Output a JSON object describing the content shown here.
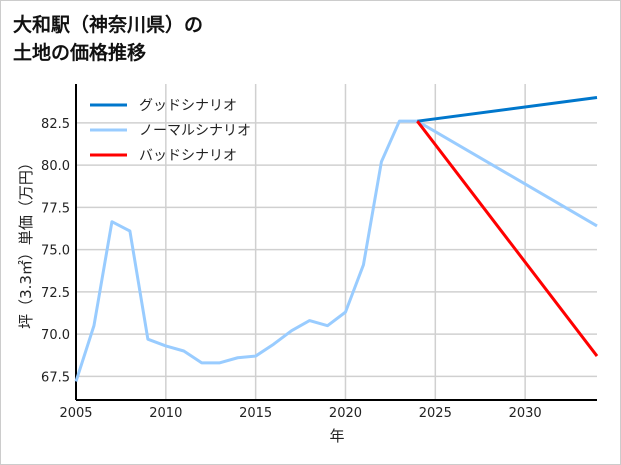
{
  "chart_data": {
    "type": "line",
    "title_lines": [
      "大和駅（神奈川県）の",
      "土地の価格推移"
    ],
    "xlabel": "年",
    "ylabel": "坪（3.3㎡）単価（万円）",
    "xlim": [
      2005,
      2034
    ],
    "ylim": [
      66.1,
      84.8
    ],
    "xticks": [
      2005,
      2010,
      2015,
      2020,
      2025,
      2030
    ],
    "yticks": [
      67.5,
      70.0,
      72.5,
      75.0,
      77.5,
      80.0,
      82.5
    ],
    "grid": true,
    "legend_position": "top-left",
    "series": [
      {
        "name": "グッドシナリオ",
        "color": "#0077cc",
        "x": [
          2024,
          2034
        ],
        "y": [
          82.6,
          84.0
        ]
      },
      {
        "name": "ノーマルシナリオ",
        "color": "#99ccff",
        "x": [
          2005,
          2006,
          2007,
          2008,
          2009,
          2010,
          2011,
          2012,
          2013,
          2014,
          2015,
          2016,
          2017,
          2018,
          2019,
          2020,
          2021,
          2022,
          2023,
          2024,
          2034
        ],
        "y": [
          67.2,
          70.5,
          76.65,
          76.1,
          69.7,
          69.3,
          69.0,
          68.3,
          68.3,
          68.6,
          68.7,
          69.4,
          70.2,
          70.8,
          70.5,
          71.3,
          74.1,
          80.2,
          82.6,
          82.6,
          76.4
        ]
      },
      {
        "name": "バッドシナリオ",
        "color": "#ff0000",
        "x": [
          2024,
          2034
        ],
        "y": [
          82.6,
          68.7
        ]
      }
    ]
  }
}
